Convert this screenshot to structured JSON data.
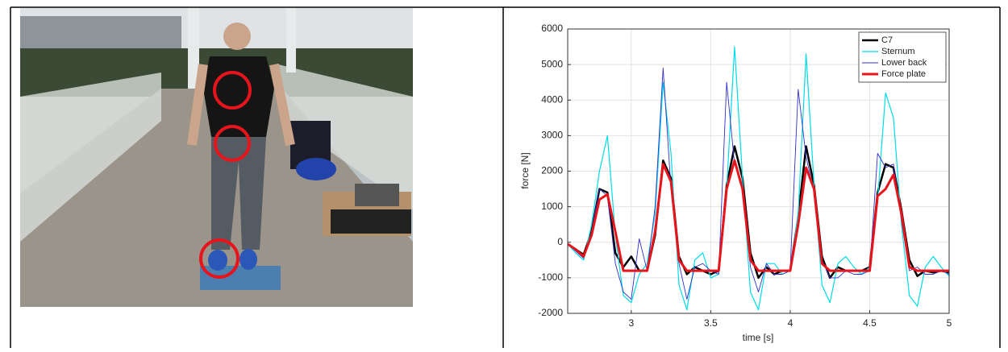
{
  "chart_data": {
    "type": "line",
    "x_label": "time [s]",
    "y_label": "force [N]",
    "x": [
      2.6,
      2.65,
      2.7,
      2.75,
      2.8,
      2.85,
      2.9,
      2.95,
      3.0,
      3.05,
      3.1,
      3.15,
      3.2,
      3.25,
      3.3,
      3.35,
      3.4,
      3.45,
      3.5,
      3.55,
      3.6,
      3.65,
      3.7,
      3.75,
      3.8,
      3.85,
      3.9,
      3.95,
      4.0,
      4.05,
      4.1,
      4.15,
      4.2,
      4.25,
      4.3,
      4.35,
      4.4,
      4.45,
      4.5,
      4.55,
      4.6,
      4.65,
      4.7,
      4.75,
      4.8,
      4.85,
      4.9,
      4.95,
      5.0
    ],
    "series": [
      {
        "name": "C7",
        "color": "#000000",
        "line_width": 2.5,
        "values": [
          -50,
          -200,
          -350,
          300,
          1500,
          1400,
          -300,
          -700,
          -400,
          -800,
          -800,
          200,
          2300,
          1800,
          -400,
          -900,
          -700,
          -800,
          -900,
          -800,
          1600,
          2700,
          1800,
          -300,
          -1000,
          -700,
          -900,
          -800,
          -800,
          700,
          2700,
          1600,
          -400,
          -1000,
          -700,
          -800,
          -800,
          -800,
          -700,
          1400,
          2200,
          2100,
          900,
          -500,
          -950,
          -800,
          -850,
          -800,
          -850
        ]
      },
      {
        "name": "Sternum",
        "color": "#00dce8",
        "line_width": 1.2,
        "values": [
          -50,
          -300,
          -500,
          500,
          2000,
          3000,
          200,
          -1500,
          -1700,
          -900,
          -600,
          800,
          4500,
          2500,
          -1200,
          -1900,
          -500,
          -300,
          -1000,
          -900,
          1500,
          5500,
          1800,
          -1400,
          -1900,
          -600,
          -600,
          -900,
          -800,
          800,
          5300,
          1600,
          -1200,
          -1700,
          -600,
          -400,
          -700,
          -900,
          -700,
          1200,
          4200,
          3500,
          500,
          -1500,
          -1800,
          -700,
          -400,
          -700,
          -950
        ]
      },
      {
        "name": "Lower back",
        "color": "#3030c8",
        "line_width": 0.9,
        "values": [
          -50,
          -250,
          -450,
          300,
          1500,
          1300,
          -600,
          -1400,
          -1600,
          100,
          -800,
          1000,
          4900,
          1500,
          -600,
          -1600,
          -700,
          -600,
          -800,
          -900,
          4500,
          2200,
          1600,
          -700,
          -1400,
          -600,
          -900,
          -900,
          -800,
          4300,
          2400,
          1400,
          -500,
          -1000,
          -1000,
          -800,
          -900,
          -900,
          -800,
          2500,
          2100,
          2200,
          600,
          -800,
          -700,
          -900,
          -900,
          -800,
          -900
        ]
      },
      {
        "name": "Force plate",
        "color": "#e8141b",
        "line_width": 3,
        "values": [
          -50,
          -200,
          -400,
          200,
          1200,
          1350,
          300,
          -800,
          -800,
          -800,
          -800,
          300,
          2200,
          1700,
          -500,
          -800,
          -800,
          -800,
          -800,
          -800,
          1500,
          2300,
          1500,
          -500,
          -800,
          -800,
          -800,
          -800,
          -800,
          500,
          2100,
          1500,
          -600,
          -800,
          -800,
          -800,
          -800,
          -800,
          -800,
          1300,
          1500,
          1900,
          800,
          -700,
          -800,
          -800,
          -800,
          -800,
          -800
        ]
      }
    ],
    "xlim": [
      2.6,
      5
    ],
    "ylim": [
      -2000,
      6000
    ],
    "xticks": [
      3,
      3.5,
      4,
      4.5,
      5
    ],
    "yticks": [
      -2000,
      -1000,
      0,
      1000,
      2000,
      3000,
      4000,
      5000,
      6000
    ],
    "grid": true,
    "legend": "upper right"
  }
}
